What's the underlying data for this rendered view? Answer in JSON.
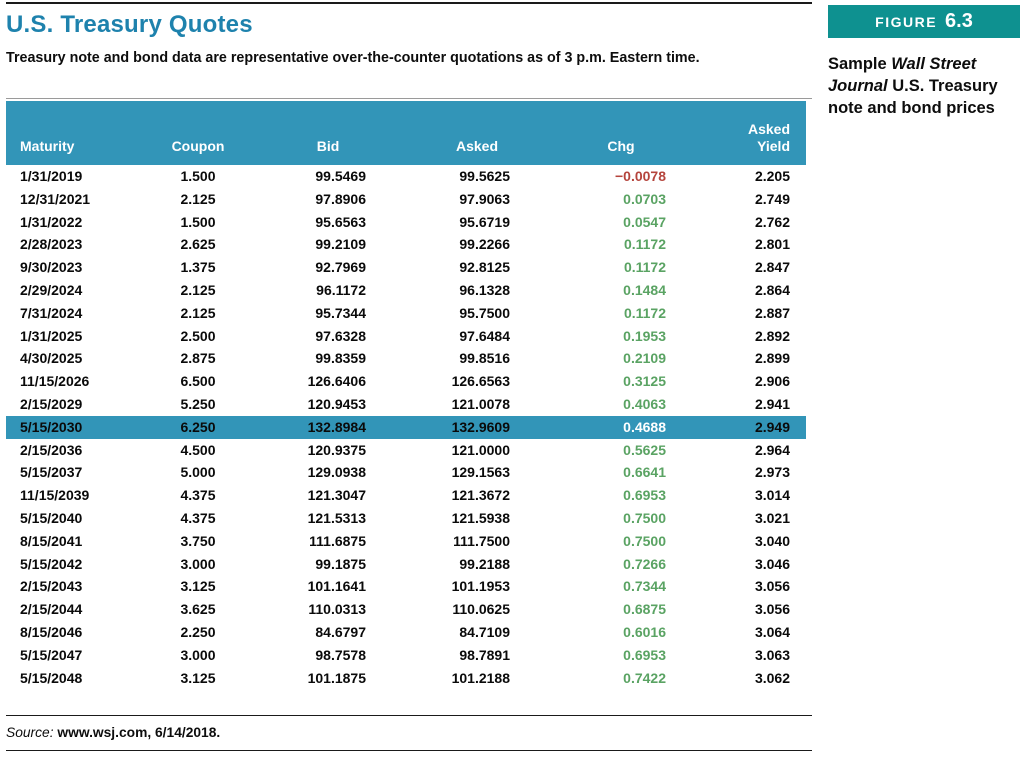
{
  "page": {
    "title": "U.S. Treasury Quotes",
    "subtitle": "Treasury note and bond data are representative over-the-counter quotations as of 3 p.m. Eastern time.",
    "source_label": "Source: ",
    "source_text": "www.wsj.com, 6/14/2018."
  },
  "figure": {
    "label": "FIGURE",
    "number": "6.3",
    "caption_part_1": "Sample ",
    "caption_part_2": "Wall Street Journal",
    "caption_part_3": " U.S. Treasury note and bond prices"
  },
  "colors": {
    "title_blue": "#1e82ad",
    "header_teal": "#3295b8",
    "highlight_teal": "#3295b8",
    "badge_teal": "#0e9190",
    "positive_green": "#5aa363",
    "negative_red": "#b5443c"
  },
  "table": {
    "columns": [
      "Maturity",
      "Coupon",
      "Bid",
      "Asked",
      "Chg",
      "Asked\nYield"
    ],
    "highlight_row_index": 11,
    "rows": [
      {
        "maturity": "1/31/2019",
        "coupon": "1.500",
        "bid": "99.5469",
        "asked": "99.5625",
        "chg": "−0.0078",
        "chg_dir": "neg",
        "yld": "2.205"
      },
      {
        "maturity": "12/31/2021",
        "coupon": "2.125",
        "bid": "97.8906",
        "asked": "97.9063",
        "chg": "0.0703",
        "chg_dir": "pos",
        "yld": "2.749"
      },
      {
        "maturity": "1/31/2022",
        "coupon": "1.500",
        "bid": "95.6563",
        "asked": "95.6719",
        "chg": "0.0547",
        "chg_dir": "pos",
        "yld": "2.762"
      },
      {
        "maturity": "2/28/2023",
        "coupon": "2.625",
        "bid": "99.2109",
        "asked": "99.2266",
        "chg": "0.1172",
        "chg_dir": "pos",
        "yld": "2.801"
      },
      {
        "maturity": "9/30/2023",
        "coupon": "1.375",
        "bid": "92.7969",
        "asked": "92.8125",
        "chg": "0.1172",
        "chg_dir": "pos",
        "yld": "2.847"
      },
      {
        "maturity": "2/29/2024",
        "coupon": "2.125",
        "bid": "96.1172",
        "asked": "96.1328",
        "chg": "0.1484",
        "chg_dir": "pos",
        "yld": "2.864"
      },
      {
        "maturity": "7/31/2024",
        "coupon": "2.125",
        "bid": "95.7344",
        "asked": "95.7500",
        "chg": "0.1172",
        "chg_dir": "pos",
        "yld": "2.887"
      },
      {
        "maturity": "1/31/2025",
        "coupon": "2.500",
        "bid": "97.6328",
        "asked": "97.6484",
        "chg": "0.1953",
        "chg_dir": "pos",
        "yld": "2.892"
      },
      {
        "maturity": "4/30/2025",
        "coupon": "2.875",
        "bid": "99.8359",
        "asked": "99.8516",
        "chg": "0.2109",
        "chg_dir": "pos",
        "yld": "2.899"
      },
      {
        "maturity": "11/15/2026",
        "coupon": "6.500",
        "bid": "126.6406",
        "asked": "126.6563",
        "chg": "0.3125",
        "chg_dir": "pos",
        "yld": "2.906"
      },
      {
        "maturity": "2/15/2029",
        "coupon": "5.250",
        "bid": "120.9453",
        "asked": "121.0078",
        "chg": "0.4063",
        "chg_dir": "pos",
        "yld": "2.941"
      },
      {
        "maturity": "5/15/2030",
        "coupon": "6.250",
        "bid": "132.8984",
        "asked": "132.9609",
        "chg": "0.4688",
        "chg_dir": "pos",
        "yld": "2.949"
      },
      {
        "maturity": "2/15/2036",
        "coupon": "4.500",
        "bid": "120.9375",
        "asked": "121.0000",
        "chg": "0.5625",
        "chg_dir": "pos",
        "yld": "2.964"
      },
      {
        "maturity": "5/15/2037",
        "coupon": "5.000",
        "bid": "129.0938",
        "asked": "129.1563",
        "chg": "0.6641",
        "chg_dir": "pos",
        "yld": "2.973"
      },
      {
        "maturity": "11/15/2039",
        "coupon": "4.375",
        "bid": "121.3047",
        "asked": "121.3672",
        "chg": "0.6953",
        "chg_dir": "pos",
        "yld": "3.014"
      },
      {
        "maturity": "5/15/2040",
        "coupon": "4.375",
        "bid": "121.5313",
        "asked": "121.5938",
        "chg": "0.7500",
        "chg_dir": "pos",
        "yld": "3.021"
      },
      {
        "maturity": "8/15/2041",
        "coupon": "3.750",
        "bid": "111.6875",
        "asked": "111.7500",
        "chg": "0.7500",
        "chg_dir": "pos",
        "yld": "3.040"
      },
      {
        "maturity": "5/15/2042",
        "coupon": "3.000",
        "bid": "99.1875",
        "asked": "99.2188",
        "chg": "0.7266",
        "chg_dir": "pos",
        "yld": "3.046"
      },
      {
        "maturity": "2/15/2043",
        "coupon": "3.125",
        "bid": "101.1641",
        "asked": "101.1953",
        "chg": "0.7344",
        "chg_dir": "pos",
        "yld": "3.056"
      },
      {
        "maturity": "2/15/2044",
        "coupon": "3.625",
        "bid": "110.0313",
        "asked": "110.0625",
        "chg": "0.6875",
        "chg_dir": "pos",
        "yld": "3.056"
      },
      {
        "maturity": "8/15/2046",
        "coupon": "2.250",
        "bid": "84.6797",
        "asked": "84.7109",
        "chg": "0.6016",
        "chg_dir": "pos",
        "yld": "3.064"
      },
      {
        "maturity": "5/15/2047",
        "coupon": "3.000",
        "bid": "98.7578",
        "asked": "98.7891",
        "chg": "0.6953",
        "chg_dir": "pos",
        "yld": "3.063"
      },
      {
        "maturity": "5/15/2048",
        "coupon": "3.125",
        "bid": "101.1875",
        "asked": "101.2188",
        "chg": "0.7422",
        "chg_dir": "pos",
        "yld": "3.062"
      }
    ]
  }
}
